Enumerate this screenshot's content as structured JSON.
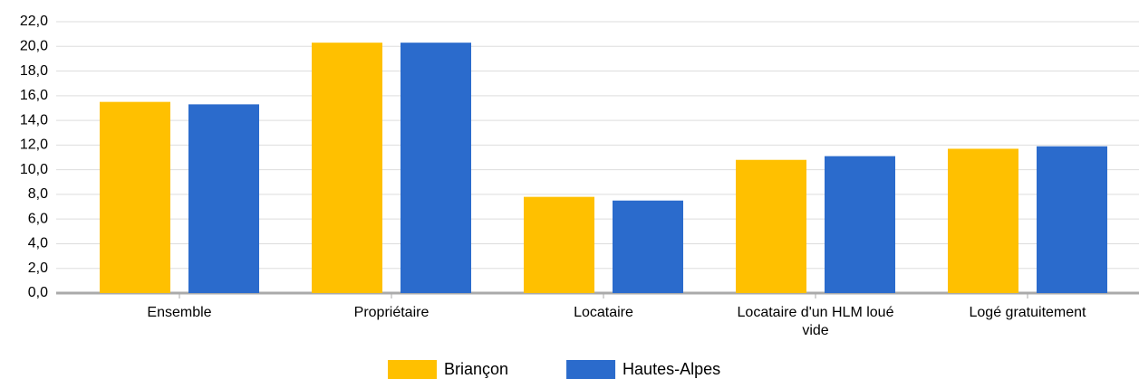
{
  "chart_data": {
    "type": "bar",
    "categories": [
      "Ensemble",
      "Propriétaire",
      "Locataire",
      "Locataire d'un HLM loué vide",
      "Logé gratuitement"
    ],
    "series": [
      {
        "name": "Briançon",
        "color": "#ffc000",
        "values": [
          15.5,
          20.3,
          7.8,
          10.8,
          11.7
        ]
      },
      {
        "name": "Hautes-Alpes",
        "color": "#2b6bcc",
        "values": [
          15.3,
          20.3,
          7.5,
          11.1,
          11.9
        ]
      }
    ],
    "ylim": [
      0,
      22
    ],
    "yticks": [
      {
        "value": 0,
        "label": "0,0"
      },
      {
        "value": 2,
        "label": "2,0"
      },
      {
        "value": 4,
        "label": "4,0"
      },
      {
        "value": 6,
        "label": "6,0"
      },
      {
        "value": 8,
        "label": "8,0"
      },
      {
        "value": 10,
        "label": "10,0"
      },
      {
        "value": 12,
        "label": "12,0"
      },
      {
        "value": 14,
        "label": "14,0"
      },
      {
        "value": 16,
        "label": "16,0"
      },
      {
        "value": 18,
        "label": "18,0"
      },
      {
        "value": 20,
        "label": "20,0"
      },
      {
        "value": 22,
        "label": "22,0"
      }
    ],
    "grid": true,
    "legend": "bottom"
  }
}
